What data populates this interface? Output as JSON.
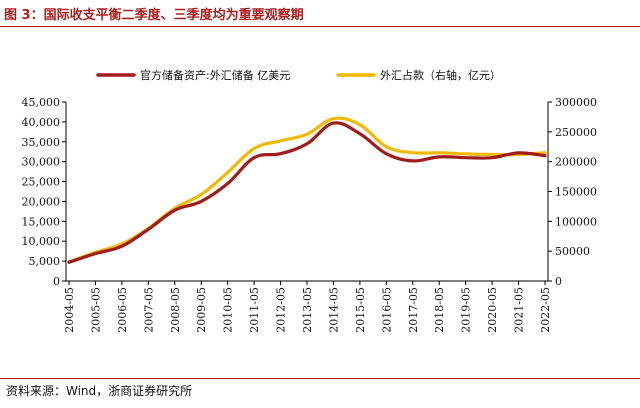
{
  "header": {
    "title": "图 3：国际收支平衡二季度、三季度均为重要观察期"
  },
  "footer": {
    "source": "资料来源：Wind，浙商证券研究所"
  },
  "chart_data": {
    "type": "line",
    "x": [
      "2004-05",
      "2005-05",
      "2006-05",
      "2007-05",
      "2008-05",
      "2009-05",
      "2010-05",
      "2011-05",
      "2012-05",
      "2013-05",
      "2014-05",
      "2015-05",
      "2016-05",
      "2017-05",
      "2018-05",
      "2019-05",
      "2020-05",
      "2021-05",
      "2022-05"
    ],
    "left_axis": {
      "ylim": [
        0,
        45000
      ],
      "ticks": [
        "0",
        "5,000",
        "10,000",
        "15,000",
        "20,000",
        "25,000",
        "30,000",
        "35,000",
        "40,000",
        "45,000"
      ]
    },
    "right_axis": {
      "ylim": [
        0,
        300000
      ],
      "ticks": [
        "0",
        "50000",
        "100000",
        "150000",
        "200000",
        "250000",
        "300000"
      ]
    },
    "legend_position": "top",
    "grid": false,
    "series": [
      {
        "name": "官方储备资产:外汇储备 亿美元",
        "axis": "left",
        "color": "#a01c1c",
        "values": [
          4700,
          6900,
          8750,
          13000,
          17800,
          20000,
          24500,
          31000,
          32000,
          34500,
          39700,
          37000,
          32000,
          30200,
          31200,
          31000,
          31000,
          32200,
          31500
        ]
      },
      {
        "name": "外汇占款（右轴，亿元）",
        "axis": "right",
        "color": "#f4b800",
        "values": [
          32000,
          48000,
          62000,
          88000,
          122000,
          145000,
          182000,
          222000,
          235000,
          246000,
          272000,
          262000,
          225000,
          215000,
          215000,
          213000,
          212000,
          212000,
          215000
        ]
      }
    ]
  }
}
